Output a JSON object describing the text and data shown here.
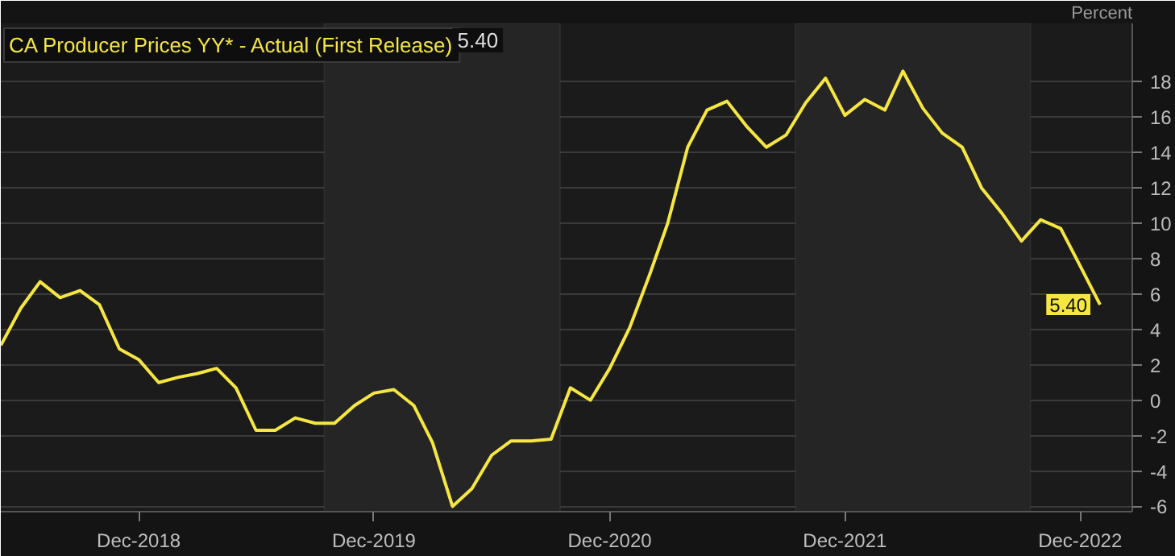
{
  "chart_data": {
    "type": "line",
    "title": "CA Producer Prices YY* - Actual (First Release)",
    "ylabel": "Percent",
    "annotations": [
      "5.40"
    ],
    "x": [
      "2018-05",
      "2018-06",
      "2018-07",
      "2018-08",
      "2018-09",
      "2018-10",
      "2018-11",
      "2018-12",
      "2019-01",
      "2019-02",
      "2019-03",
      "2019-04",
      "2019-05",
      "2019-06",
      "2019-07",
      "2019-08",
      "2019-09",
      "2019-10",
      "2019-11",
      "2019-12",
      "2020-01",
      "2020-02",
      "2020-03",
      "2020-04",
      "2020-05",
      "2020-06",
      "2020-07",
      "2020-08",
      "2020-09",
      "2020-10",
      "2020-11",
      "2020-12",
      "2021-01",
      "2021-02",
      "2021-03",
      "2021-04",
      "2021-05",
      "2021-06",
      "2021-07",
      "2021-08",
      "2021-09",
      "2021-10",
      "2021-11",
      "2021-12",
      "2022-01",
      "2022-02",
      "2022-03",
      "2022-04",
      "2022-05",
      "2022-06",
      "2022-07",
      "2022-08",
      "2022-09",
      "2022-10",
      "2022-11",
      "2022-12",
      "2023-01"
    ],
    "series": [
      {
        "color": "#f5e642",
        "values": [
          3.1,
          5.2,
          6.7,
          5.8,
          6.2,
          5.4,
          2.9,
          2.3,
          1.0,
          1.3,
          1.5,
          1.8,
          0.7,
          -1.7,
          -1.7,
          -1.0,
          -1.3,
          -1.3,
          -0.3,
          0.4,
          0.6,
          -0.3,
          -2.4,
          -6.0,
          -5.0,
          -3.1,
          -2.3,
          -2.3,
          -2.2,
          0.7,
          0.0,
          1.8,
          4.1,
          7.1,
          10.0,
          14.3,
          16.4,
          16.9,
          15.5,
          14.3,
          15.0,
          16.8,
          18.2,
          16.1,
          17.0,
          16.4,
          18.6,
          16.5,
          15.1,
          14.3,
          12.0,
          10.6,
          9.0,
          10.2,
          9.7,
          7.6,
          5.4
        ],
        "value_labels": [
          null,
          null,
          null,
          null,
          null,
          null,
          null,
          null,
          null,
          null,
          null,
          null,
          null,
          null,
          null,
          null,
          null,
          null,
          null,
          null,
          null,
          null,
          null,
          null,
          null,
          null,
          null,
          null,
          null,
          null,
          null,
          null,
          null,
          null,
          null,
          null,
          null,
          null,
          null,
          null,
          null,
          null,
          null,
          null,
          null,
          null,
          null,
          null,
          null,
          null,
          null,
          null,
          null,
          null,
          null,
          null,
          "5.40"
        ]
      }
    ],
    "xlim": [
      "2018-05-01",
      "2023-02-20"
    ],
    "xticks": [
      {
        "value": "2018-12-01",
        "label": "Dec-2018"
      },
      {
        "value": "2019-12-01",
        "label": "Dec-2019"
      },
      {
        "value": "2020-12-01",
        "label": "Dec-2020"
      },
      {
        "value": "2021-12-01",
        "label": "Dec-2021"
      },
      {
        "value": "2022-12-01",
        "label": "Dec-2022"
      }
    ],
    "ylim": [
      -6.3,
      21.3
    ],
    "yticks": [
      -6,
      -4,
      -2,
      0,
      2,
      4,
      6,
      8,
      10,
      12,
      14,
      16,
      18
    ],
    "bands": [
      {
        "axis": "x",
        "from": "2019-09-15",
        "to": "2020-09-15",
        "color": "#252525"
      },
      {
        "axis": "x",
        "from": "2021-09-15",
        "to": "2022-09-15",
        "color": "#252525"
      }
    ],
    "grid": "y",
    "marker": "none",
    "line_style": "solid"
  }
}
